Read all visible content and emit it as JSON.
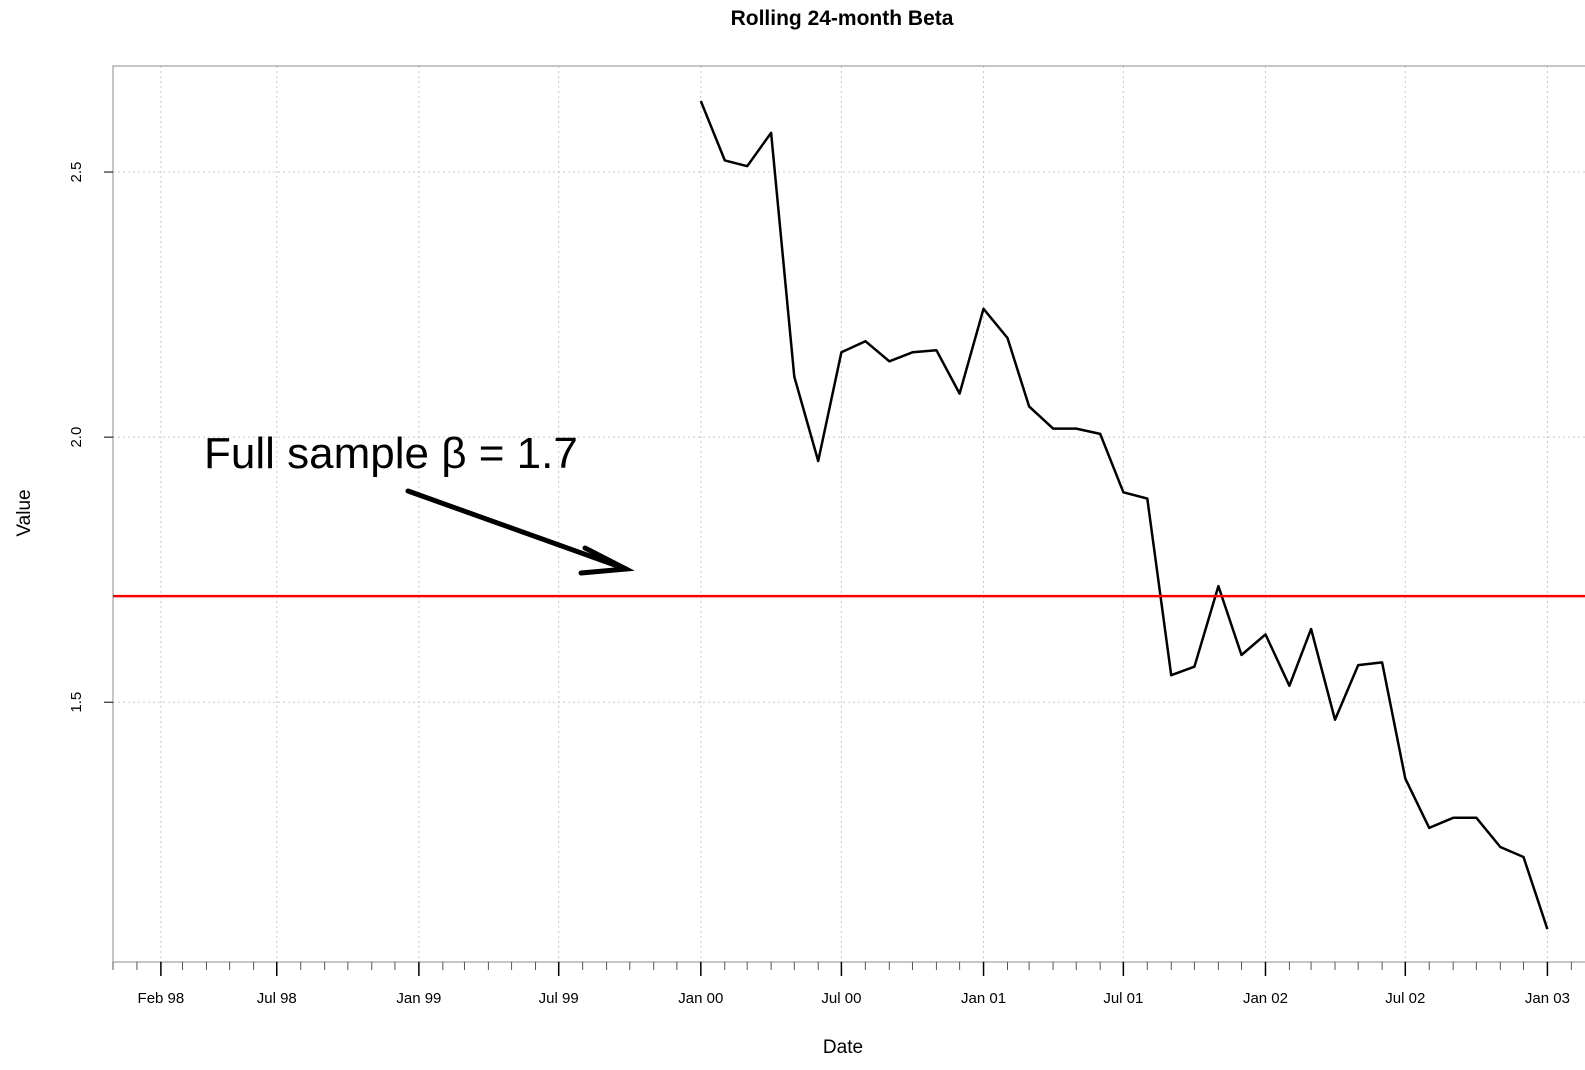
{
  "chart_data": {
    "type": "line",
    "title": "Rolling 24-month Beta",
    "xlabel": "Date",
    "ylabel": "Value",
    "x_major_ticks": [
      {
        "date": "1998-02-01",
        "label": "Feb 98"
      },
      {
        "date": "1998-07-01",
        "label": "Jul 98"
      },
      {
        "date": "1999-01-01",
        "label": "Jan 99"
      },
      {
        "date": "1999-07-01",
        "label": "Jul 99"
      },
      {
        "date": "2000-01-01",
        "label": "Jan 00"
      },
      {
        "date": "2000-07-01",
        "label": "Jul 00"
      },
      {
        "date": "2001-01-01",
        "label": "Jan 01"
      },
      {
        "date": "2001-07-01",
        "label": "Jul 01"
      },
      {
        "date": "2002-01-01",
        "label": "Jan 02"
      },
      {
        "date": "2002-07-01",
        "label": "Jul 02"
      },
      {
        "date": "2003-01-01",
        "label": "Jan 03"
      }
    ],
    "y_ticks": [
      {
        "value": 1.5,
        "label": "1.5"
      },
      {
        "value": 2.0,
        "label": "2.0"
      },
      {
        "value": 2.5,
        "label": "2.5"
      }
    ],
    "xlim": [
      "1997-12-01",
      "2003-03-01"
    ],
    "ylim": [
      1.01,
      2.7
    ],
    "grid": true,
    "series": [
      {
        "color": "#000000",
        "x": [
          "2000-01-01",
          "2000-02-01",
          "2000-03-01",
          "2000-04-01",
          "2000-05-01",
          "2000-06-01",
          "2000-07-01",
          "2000-08-01",
          "2000-09-01",
          "2000-10-01",
          "2000-11-01",
          "2000-12-01",
          "2001-01-01",
          "2001-02-01",
          "2001-03-01",
          "2001-04-01",
          "2001-05-01",
          "2001-06-01",
          "2001-07-01",
          "2001-08-01",
          "2001-09-01",
          "2001-10-01",
          "2001-11-01",
          "2001-12-01",
          "2002-01-01",
          "2002-02-01",
          "2002-03-01",
          "2002-04-01",
          "2002-05-01",
          "2002-06-01",
          "2002-07-01",
          "2002-08-01",
          "2002-09-01",
          "2002-10-01",
          "2002-11-01",
          "2002-12-01",
          "2003-01-01"
        ],
        "y": [
          2.634,
          2.522,
          2.511,
          2.574,
          2.114,
          1.955,
          2.16,
          2.181,
          2.143,
          2.16,
          2.164,
          2.082,
          2.242,
          2.187,
          2.058,
          2.016,
          2.016,
          2.006,
          1.896,
          1.884,
          1.551,
          1.567,
          1.719,
          1.589,
          1.628,
          1.531,
          1.638,
          1.467,
          1.57,
          1.575,
          1.356,
          1.263,
          1.282,
          1.282,
          1.227,
          1.208,
          1.072
        ]
      }
    ],
    "reference_line": {
      "value": 1.7,
      "color": "#ff0000"
    },
    "annotation": {
      "text": "Full sample β = 1.7"
    }
  }
}
